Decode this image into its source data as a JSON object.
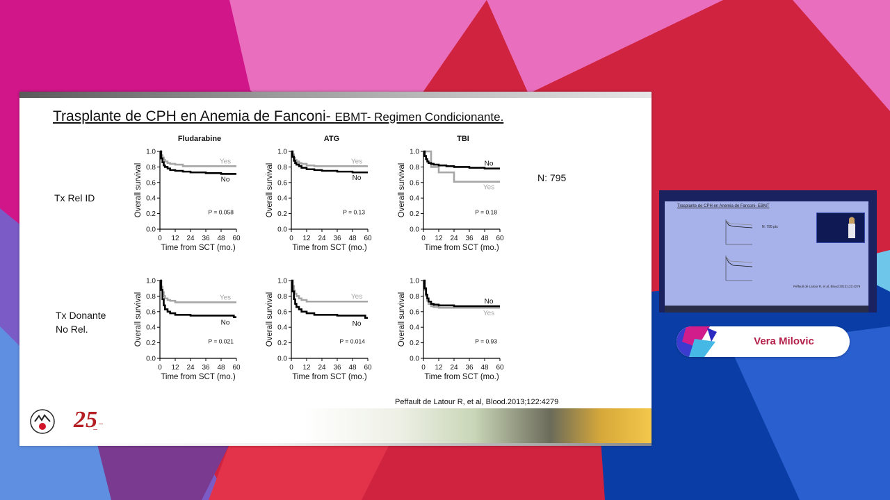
{
  "slide": {
    "title_main": "Trasplante de CPH en Anemia de Fanconi- ",
    "title_small": "EBMT- Regimen Condicionante.",
    "n_label": "N: 795",
    "citation": "Peffault de Latour R, et al, Blood.2013;122:4279"
  },
  "rows": [
    {
      "label_lines": [
        "Tx Rel ID"
      ]
    },
    {
      "label_lines": [
        "Tx Donante",
        "No Rel."
      ]
    }
  ],
  "column_titles": [
    "Fludarabine",
    "ATG",
    "TBI"
  ],
  "chart_data": [
    {
      "type": "line",
      "row": "Tx Rel ID",
      "title": "Fludarabine",
      "xlabel": "Time from SCT (mo.)",
      "ylabel": "Overall survival",
      "xlim": [
        0,
        60
      ],
      "ylim": [
        0,
        1.0
      ],
      "xticks": [
        0,
        12,
        24,
        36,
        48,
        60
      ],
      "yticks": [
        "0.0",
        "0.2",
        "0.4",
        "0.6",
        "0.8",
        "1.0"
      ],
      "p_value": "P = 0.058",
      "series": [
        {
          "name": "Yes",
          "color": "#a6a6a6",
          "x": [
            0,
            1,
            2,
            3,
            4,
            6,
            8,
            12,
            18,
            60
          ],
          "y": [
            1.0,
            0.95,
            0.92,
            0.89,
            0.87,
            0.85,
            0.84,
            0.83,
            0.81,
            0.81
          ]
        },
        {
          "name": "No",
          "color": "#000000",
          "x": [
            0,
            1,
            2,
            3,
            4,
            6,
            8,
            12,
            18,
            24,
            36,
            48,
            60
          ],
          "y": [
            1.0,
            0.91,
            0.86,
            0.82,
            0.8,
            0.78,
            0.76,
            0.75,
            0.74,
            0.73,
            0.72,
            0.71,
            0.71
          ]
        }
      ]
    },
    {
      "type": "line",
      "row": "Tx Rel ID",
      "title": "ATG",
      "xlabel": "Time from SCT (mo.)",
      "ylabel": "Overall survival",
      "xlim": [
        0,
        60
      ],
      "ylim": [
        0,
        1.0
      ],
      "xticks": [
        0,
        12,
        24,
        36,
        48,
        60
      ],
      "yticks": [
        "0.0",
        "0.2",
        "0.4",
        "0.6",
        "0.8",
        "1.0"
      ],
      "p_value": "P = 0.13",
      "series": [
        {
          "name": "Yes",
          "color": "#a6a6a6",
          "x": [
            0,
            1,
            2,
            3,
            4,
            6,
            8,
            12,
            18,
            60
          ],
          "y": [
            1.0,
            0.96,
            0.92,
            0.89,
            0.87,
            0.85,
            0.84,
            0.82,
            0.81,
            0.81
          ]
        },
        {
          "name": "No",
          "color": "#000000",
          "x": [
            0,
            1,
            2,
            3,
            4,
            6,
            8,
            12,
            18,
            24,
            36,
            48,
            60
          ],
          "y": [
            1.0,
            0.93,
            0.88,
            0.85,
            0.83,
            0.81,
            0.79,
            0.77,
            0.76,
            0.75,
            0.74,
            0.73,
            0.73
          ]
        }
      ]
    },
    {
      "type": "line",
      "row": "Tx Rel ID",
      "title": "TBI",
      "xlabel": "Time from SCT (mo.)",
      "ylabel": "Overall survival",
      "xlim": [
        0,
        60
      ],
      "ylim": [
        0,
        1.0
      ],
      "xticks": [
        0,
        12,
        24,
        36,
        48,
        60
      ],
      "yticks": [
        "0.0",
        "0.2",
        "0.4",
        "0.6",
        "0.8",
        "1.0"
      ],
      "p_value": "P = 0.18",
      "series": [
        {
          "name": "Yes",
          "color": "#a6a6a6",
          "x": [
            0,
            6,
            12,
            18,
            24,
            60
          ],
          "y": [
            1.0,
            0.8,
            0.73,
            0.73,
            0.61,
            0.61
          ]
        },
        {
          "name": "No",
          "color": "#000000",
          "x": [
            0,
            1,
            2,
            3,
            4,
            6,
            8,
            12,
            18,
            24,
            36,
            48,
            60
          ],
          "y": [
            1.0,
            0.94,
            0.9,
            0.87,
            0.85,
            0.84,
            0.83,
            0.82,
            0.81,
            0.8,
            0.79,
            0.78,
            0.78
          ]
        }
      ]
    },
    {
      "type": "line",
      "row": "Tx Donante No Rel.",
      "title": "",
      "xlabel": "Time from SCT (mo.)",
      "ylabel": "Overall survival",
      "xlim": [
        0,
        60
      ],
      "ylim": [
        0,
        1.0
      ],
      "xticks": [
        0,
        12,
        24,
        36,
        48,
        60
      ],
      "yticks": [
        "0.0",
        "0.2",
        "0.4",
        "0.6",
        "0.8",
        "1.0"
      ],
      "p_value": "P = 0.021",
      "series": [
        {
          "name": "Yes",
          "color": "#a6a6a6",
          "x": [
            0,
            1,
            2,
            3,
            4,
            6,
            8,
            12,
            18,
            60
          ],
          "y": [
            1.0,
            0.92,
            0.85,
            0.8,
            0.77,
            0.75,
            0.74,
            0.72,
            0.72,
            0.72
          ]
        },
        {
          "name": "No",
          "color": "#000000",
          "x": [
            0,
            1,
            2,
            3,
            4,
            6,
            8,
            12,
            18,
            24,
            36,
            48,
            58,
            60
          ],
          "y": [
            1.0,
            0.88,
            0.76,
            0.68,
            0.63,
            0.6,
            0.58,
            0.56,
            0.56,
            0.55,
            0.55,
            0.55,
            0.53,
            0.53
          ]
        }
      ]
    },
    {
      "type": "line",
      "row": "Tx Donante No Rel.",
      "title": "",
      "xlabel": "Time from SCT (mo.)",
      "ylabel": "Overall survival",
      "xlim": [
        0,
        60
      ],
      "ylim": [
        0,
        1.0
      ],
      "xticks": [
        0,
        12,
        24,
        36,
        48,
        60
      ],
      "yticks": [
        "0.0",
        "0.2",
        "0.4",
        "0.6",
        "0.8",
        "1.0"
      ],
      "p_value": "P = 0.014",
      "series": [
        {
          "name": "Yes",
          "color": "#a6a6a6",
          "x": [
            0,
            1,
            2,
            3,
            4,
            6,
            8,
            12,
            18,
            60
          ],
          "y": [
            1.0,
            0.93,
            0.87,
            0.83,
            0.8,
            0.77,
            0.75,
            0.73,
            0.73,
            0.73
          ]
        },
        {
          "name": "No",
          "color": "#000000",
          "x": [
            0,
            1,
            2,
            3,
            4,
            6,
            8,
            12,
            18,
            24,
            36,
            48,
            58,
            60
          ],
          "y": [
            1.0,
            0.86,
            0.76,
            0.7,
            0.66,
            0.63,
            0.6,
            0.58,
            0.56,
            0.56,
            0.55,
            0.55,
            0.52,
            0.52
          ]
        }
      ]
    },
    {
      "type": "line",
      "row": "Tx Donante No Rel.",
      "title": "",
      "xlabel": "Time from SCT (mo.)",
      "ylabel": "Overall survival",
      "xlim": [
        0,
        60
      ],
      "ylim": [
        0,
        1.0
      ],
      "xticks": [
        0,
        12,
        24,
        36,
        48,
        60
      ],
      "yticks": [
        "0.0",
        "0.2",
        "0.4",
        "0.6",
        "0.8",
        "1.0"
      ],
      "p_value": "P = 0.93",
      "series": [
        {
          "name": "Yes",
          "color": "#a6a6a6",
          "x": [
            0,
            1,
            2,
            3,
            4,
            6,
            8,
            12,
            24,
            60
          ],
          "y": [
            1.0,
            0.88,
            0.8,
            0.74,
            0.7,
            0.67,
            0.66,
            0.65,
            0.65,
            0.65
          ]
        },
        {
          "name": "No",
          "color": "#000000",
          "x": [
            0,
            1,
            2,
            3,
            4,
            6,
            8,
            12,
            24,
            60
          ],
          "y": [
            1.0,
            0.9,
            0.82,
            0.77,
            0.73,
            0.7,
            0.69,
            0.68,
            0.67,
            0.67
          ]
        }
      ]
    }
  ],
  "camera": {
    "title": "Trasplante de CPH en Anemia de Fanconi- EBMT",
    "n_label": "N: 795 pts",
    "citation": "Peffault de Latour R, et al, Blood.2013;122:4279"
  },
  "nameplate": {
    "name": "Vera Milovic"
  },
  "colors": {
    "background": "#d0233f",
    "accent_pink": "#e96fbe",
    "accent_blue": "#0a3ea6",
    "name_text": "#b4214a"
  }
}
